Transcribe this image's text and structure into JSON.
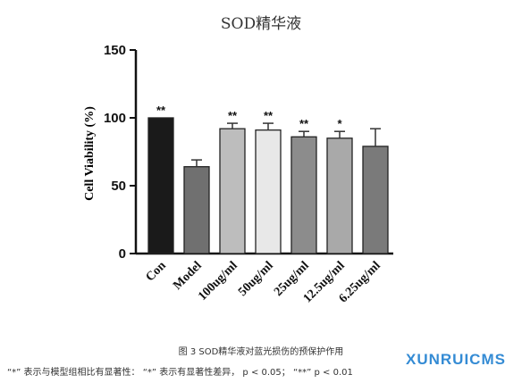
{
  "chart_data": {
    "type": "bar",
    "title": "SOD精华液",
    "ylabel": "Cell Viability (%)",
    "xlabel": "",
    "ylim": [
      0,
      150
    ],
    "yticks": [
      0,
      50,
      100,
      150
    ],
    "categories": [
      "Con",
      "Model",
      "100ug/ml",
      "50ug/ml",
      "25ug/ml",
      "12.5ug/ml",
      "6.25ug/ml"
    ],
    "values": [
      100,
      64,
      92,
      91,
      86,
      85,
      79
    ],
    "errors": [
      0,
      5,
      4,
      5,
      4,
      5,
      13
    ],
    "significance": [
      "**",
      "",
      "**",
      "**",
      "**",
      "*",
      ""
    ],
    "colors": [
      "#1a1a1a",
      "#707070",
      "#bdbdbd",
      "#e8e8e8",
      "#8c8c8c",
      "#a9a9a9",
      "#7a7a7a"
    ]
  },
  "caption": "图 3 SOD精华液对蓝光损伤的预保护作用",
  "footnote": "“*” 表示与模型组相比有显著性： “*” 表示有显著性差异， p < 0.05； “**” p < 0.01",
  "watermark": "XUNRUICMS"
}
